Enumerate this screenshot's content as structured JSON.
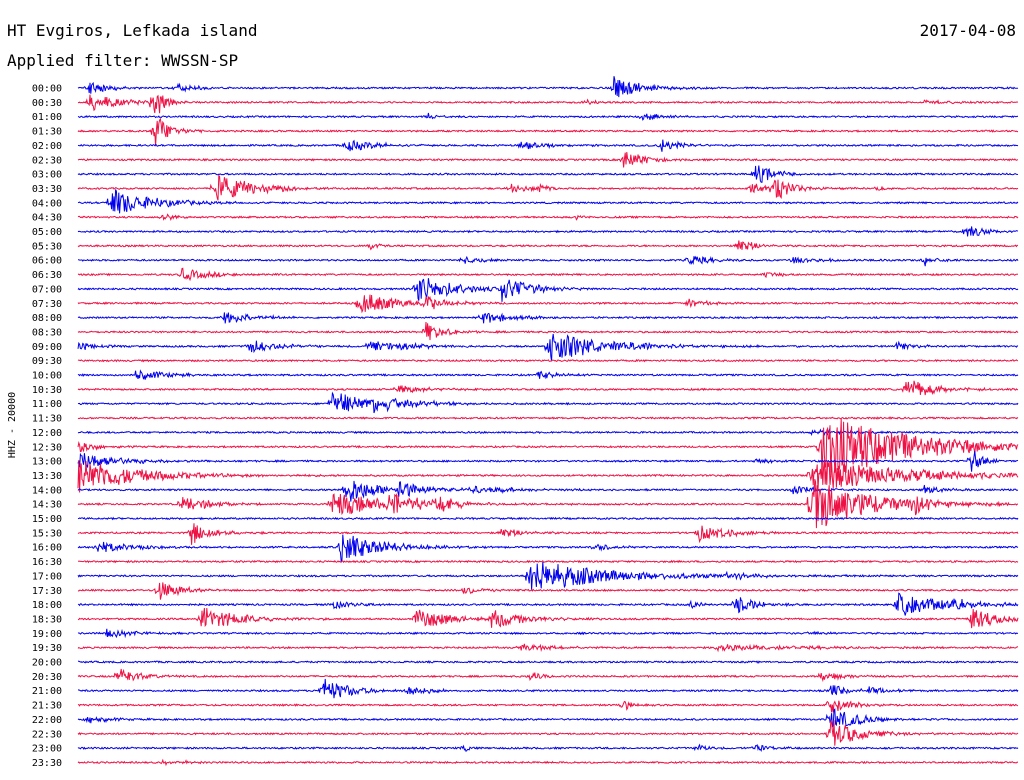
{
  "chart_data": {
    "type": "line",
    "title": "HT Evgiros, Lefkada island",
    "date": "2017-04-08",
    "subtitle": "Applied filter: WWSSN-SP",
    "ylabel": "HHZ - 20000",
    "grid": false,
    "legend": "none",
    "trace_colors": [
      "#0000ee",
      "#ee1144"
    ],
    "tick_labels": [
      "00:00",
      "00:30",
      "01:00",
      "01:30",
      "02:00",
      "02:30",
      "03:00",
      "03:30",
      "04:00",
      "04:30",
      "05:00",
      "05:30",
      "06:00",
      "06:30",
      "07:00",
      "07:30",
      "08:00",
      "08:30",
      "09:00",
      "09:30",
      "10:00",
      "10:30",
      "11:00",
      "11:30",
      "12:00",
      "12:30",
      "13:00",
      "13:30",
      "14:00",
      "14:30",
      "15:00",
      "15:30",
      "16:00",
      "16:30",
      "17:00",
      "17:30",
      "18:00",
      "18:30",
      "19:00",
      "19:30",
      "20:00",
      "20:30",
      "21:00",
      "21:30",
      "22:00",
      "22:30",
      "23:00",
      "23:30"
    ],
    "events": [
      {
        "row": 0,
        "x": 0.01,
        "amp": 1.0,
        "dur": 0.02
      },
      {
        "row": 0,
        "x": 0.105,
        "amp": 0.7,
        "dur": 0.02
      },
      {
        "row": 0,
        "x": 0.57,
        "amp": 1.6,
        "dur": 0.03
      },
      {
        "row": 1,
        "x": 0.012,
        "amp": 1.4,
        "dur": 0.03
      },
      {
        "row": 1,
        "x": 0.08,
        "amp": 2.8,
        "dur": 0.01
      },
      {
        "row": 1,
        "x": 0.54,
        "amp": 0.5,
        "dur": 0.01
      },
      {
        "row": 1,
        "x": 0.9,
        "amp": 0.3,
        "dur": 0.03
      },
      {
        "row": 2,
        "x": 0.37,
        "amp": 0.6,
        "dur": 0.01
      },
      {
        "row": 2,
        "x": 0.6,
        "amp": 0.6,
        "dur": 0.02
      },
      {
        "row": 3,
        "x": 0.082,
        "amp": 2.6,
        "dur": 0.015
      },
      {
        "row": 4,
        "x": 0.285,
        "amp": 0.9,
        "dur": 0.03
      },
      {
        "row": 4,
        "x": 0.47,
        "amp": 0.6,
        "dur": 0.03
      },
      {
        "row": 4,
        "x": 0.62,
        "amp": 1.0,
        "dur": 0.02
      },
      {
        "row": 5,
        "x": 0.58,
        "amp": 1.6,
        "dur": 0.02
      },
      {
        "row": 6,
        "x": 0.72,
        "amp": 1.6,
        "dur": 0.02
      },
      {
        "row": 7,
        "x": 0.145,
        "amp": 2.2,
        "dur": 0.04
      },
      {
        "row": 7,
        "x": 0.46,
        "amp": 0.7,
        "dur": 0.02
      },
      {
        "row": 7,
        "x": 0.49,
        "amp": 0.8,
        "dur": 0.01
      },
      {
        "row": 7,
        "x": 0.715,
        "amp": 0.8,
        "dur": 0.02
      },
      {
        "row": 7,
        "x": 0.74,
        "amp": 1.8,
        "dur": 0.02
      },
      {
        "row": 7,
        "x": 0.85,
        "amp": 0.4,
        "dur": 0.01
      },
      {
        "row": 8,
        "x": 0.035,
        "amp": 2.2,
        "dur": 0.04
      },
      {
        "row": 9,
        "x": 0.09,
        "amp": 0.7,
        "dur": 0.01
      },
      {
        "row": 9,
        "x": 0.53,
        "amp": 0.3,
        "dur": 0.01
      },
      {
        "row": 10,
        "x": 0.945,
        "amp": 1.0,
        "dur": 0.02
      },
      {
        "row": 11,
        "x": 0.31,
        "amp": 0.6,
        "dur": 0.01
      },
      {
        "row": 11,
        "x": 0.7,
        "amp": 1.0,
        "dur": 0.02
      },
      {
        "row": 12,
        "x": 0.41,
        "amp": 0.6,
        "dur": 0.02
      },
      {
        "row": 12,
        "x": 0.65,
        "amp": 0.8,
        "dur": 0.02
      },
      {
        "row": 12,
        "x": 0.76,
        "amp": 0.5,
        "dur": 0.03
      },
      {
        "row": 12,
        "x": 0.9,
        "amp": 0.9,
        "dur": 0.01
      },
      {
        "row": 13,
        "x": 0.11,
        "amp": 0.9,
        "dur": 0.03
      },
      {
        "row": 13,
        "x": 0.73,
        "amp": 0.4,
        "dur": 0.02
      },
      {
        "row": 14,
        "x": 0.36,
        "amp": 2.0,
        "dur": 0.04
      },
      {
        "row": 14,
        "x": 0.45,
        "amp": 1.8,
        "dur": 0.03
      },
      {
        "row": 15,
        "x": 0.3,
        "amp": 1.6,
        "dur": 0.04
      },
      {
        "row": 15,
        "x": 0.37,
        "amp": 1.2,
        "dur": 0.02
      },
      {
        "row": 15,
        "x": 0.65,
        "amp": 0.6,
        "dur": 0.02
      },
      {
        "row": 16,
        "x": 0.155,
        "amp": 0.9,
        "dur": 0.03
      },
      {
        "row": 16,
        "x": 0.43,
        "amp": 0.9,
        "dur": 0.03
      },
      {
        "row": 17,
        "x": 0.37,
        "amp": 1.4,
        "dur": 0.02
      },
      {
        "row": 18,
        "x": 0.0,
        "amp": 0.6,
        "dur": 0.02
      },
      {
        "row": 18,
        "x": 0.18,
        "amp": 1.0,
        "dur": 0.03
      },
      {
        "row": 18,
        "x": 0.31,
        "amp": 1.0,
        "dur": 0.04
      },
      {
        "row": 18,
        "x": 0.5,
        "amp": 2.2,
        "dur": 0.06
      },
      {
        "row": 18,
        "x": 0.87,
        "amp": 0.6,
        "dur": 0.02
      },
      {
        "row": 20,
        "x": 0.06,
        "amp": 0.9,
        "dur": 0.03
      },
      {
        "row": 20,
        "x": 0.49,
        "amp": 0.6,
        "dur": 0.02
      },
      {
        "row": 21,
        "x": 0.34,
        "amp": 0.6,
        "dur": 0.03
      },
      {
        "row": 21,
        "x": 0.88,
        "amp": 1.6,
        "dur": 0.03
      },
      {
        "row": 22,
        "x": 0.27,
        "amp": 1.8,
        "dur": 0.04
      },
      {
        "row": 22,
        "x": 0.31,
        "amp": 1.2,
        "dur": 0.04
      },
      {
        "row": 24,
        "x": 0.78,
        "amp": 0.4,
        "dur": 0.04
      },
      {
        "row": 25,
        "x": 0.0,
        "amp": 0.9,
        "dur": 0.02
      },
      {
        "row": 25,
        "x": 0.79,
        "amp": 5.0,
        "dur": 0.09
      },
      {
        "row": 26,
        "x": 0.0,
        "amp": 1.4,
        "dur": 0.04
      },
      {
        "row": 26,
        "x": 0.72,
        "amp": 0.4,
        "dur": 0.02
      },
      {
        "row": 26,
        "x": 0.95,
        "amp": 2.2,
        "dur": 0.01
      },
      {
        "row": 27,
        "x": 0.0,
        "amp": 2.6,
        "dur": 0.06
      },
      {
        "row": 27,
        "x": 0.78,
        "amp": 2.4,
        "dur": 0.1
      },
      {
        "row": 28,
        "x": 0.285,
        "amp": 2.2,
        "dur": 0.03
      },
      {
        "row": 28,
        "x": 0.34,
        "amp": 1.3,
        "dur": 0.03
      },
      {
        "row": 28,
        "x": 0.42,
        "amp": 0.6,
        "dur": 0.04
      },
      {
        "row": 28,
        "x": 0.76,
        "amp": 0.8,
        "dur": 0.02
      },
      {
        "row": 28,
        "x": 0.9,
        "amp": 0.6,
        "dur": 0.02
      },
      {
        "row": 29,
        "x": 0.11,
        "amp": 1.2,
        "dur": 0.03
      },
      {
        "row": 29,
        "x": 0.27,
        "amp": 1.8,
        "dur": 0.06
      },
      {
        "row": 29,
        "x": 0.33,
        "amp": 1.5,
        "dur": 0.03
      },
      {
        "row": 29,
        "x": 0.38,
        "amp": 1.5,
        "dur": 0.02
      },
      {
        "row": 29,
        "x": 0.78,
        "amp": 4.0,
        "dur": 0.06
      },
      {
        "row": 29,
        "x": 0.89,
        "amp": 1.2,
        "dur": 0.02
      },
      {
        "row": 31,
        "x": 0.12,
        "amp": 1.8,
        "dur": 0.02
      },
      {
        "row": 31,
        "x": 0.45,
        "amp": 0.6,
        "dur": 0.03
      },
      {
        "row": 31,
        "x": 0.66,
        "amp": 1.4,
        "dur": 0.03
      },
      {
        "row": 32,
        "x": 0.02,
        "amp": 0.8,
        "dur": 0.04
      },
      {
        "row": 32,
        "x": 0.28,
        "amp": 2.2,
        "dur": 0.04
      },
      {
        "row": 32,
        "x": 0.55,
        "amp": 0.5,
        "dur": 0.02
      },
      {
        "row": 34,
        "x": 0.48,
        "amp": 2.4,
        "dur": 0.08
      },
      {
        "row": 34,
        "x": 0.69,
        "amp": 0.5,
        "dur": 0.03
      },
      {
        "row": 35,
        "x": 0.085,
        "amp": 1.6,
        "dur": 0.02
      },
      {
        "row": 35,
        "x": 0.41,
        "amp": 0.6,
        "dur": 0.02
      },
      {
        "row": 36,
        "x": 0.27,
        "amp": 0.6,
        "dur": 0.02
      },
      {
        "row": 36,
        "x": 0.65,
        "amp": 0.6,
        "dur": 0.01
      },
      {
        "row": 36,
        "x": 0.7,
        "amp": 1.4,
        "dur": 0.02
      },
      {
        "row": 36,
        "x": 0.87,
        "amp": 1.8,
        "dur": 0.05
      },
      {
        "row": 36,
        "x": 0.93,
        "amp": 1.0,
        "dur": 0.02
      },
      {
        "row": 37,
        "x": 0.13,
        "amp": 1.8,
        "dur": 0.04
      },
      {
        "row": 37,
        "x": 0.36,
        "amp": 1.8,
        "dur": 0.03
      },
      {
        "row": 37,
        "x": 0.44,
        "amp": 1.6,
        "dur": 0.03
      },
      {
        "row": 37,
        "x": 0.95,
        "amp": 1.6,
        "dur": 0.03
      },
      {
        "row": 38,
        "x": 0.03,
        "amp": 0.6,
        "dur": 0.03
      },
      {
        "row": 38,
        "x": 0.78,
        "amp": 0.4,
        "dur": 0.01
      },
      {
        "row": 39,
        "x": 0.47,
        "amp": 0.5,
        "dur": 0.04
      },
      {
        "row": 39,
        "x": 0.68,
        "amp": 0.5,
        "dur": 0.08
      },
      {
        "row": 41,
        "x": 0.043,
        "amp": 1.4,
        "dur": 0.02
      },
      {
        "row": 41,
        "x": 0.48,
        "amp": 0.6,
        "dur": 0.02
      },
      {
        "row": 41,
        "x": 0.79,
        "amp": 0.8,
        "dur": 0.02
      },
      {
        "row": 42,
        "x": 0.26,
        "amp": 1.8,
        "dur": 0.03
      },
      {
        "row": 42,
        "x": 0.35,
        "amp": 0.8,
        "dur": 0.02
      },
      {
        "row": 42,
        "x": 0.8,
        "amp": 0.9,
        "dur": 0.02
      },
      {
        "row": 42,
        "x": 0.84,
        "amp": 0.6,
        "dur": 0.02
      },
      {
        "row": 43,
        "x": 0.58,
        "amp": 0.8,
        "dur": 0.01
      },
      {
        "row": 43,
        "x": 0.8,
        "amp": 1.4,
        "dur": 0.02
      },
      {
        "row": 44,
        "x": 0.01,
        "amp": 0.7,
        "dur": 0.02
      },
      {
        "row": 44,
        "x": 0.8,
        "amp": 1.8,
        "dur": 0.03
      },
      {
        "row": 45,
        "x": 0.8,
        "amp": 2.2,
        "dur": 0.03
      },
      {
        "row": 46,
        "x": 0.41,
        "amp": 0.5,
        "dur": 0.01
      },
      {
        "row": 46,
        "x": 0.66,
        "amp": 0.7,
        "dur": 0.01
      },
      {
        "row": 46,
        "x": 0.72,
        "amp": 0.5,
        "dur": 0.02
      },
      {
        "row": 47,
        "x": 0.09,
        "amp": 0.3,
        "dur": 0.01
      },
      {
        "row": 47,
        "x": 0.11,
        "amp": 0.4,
        "dur": 0.01
      }
    ]
  }
}
